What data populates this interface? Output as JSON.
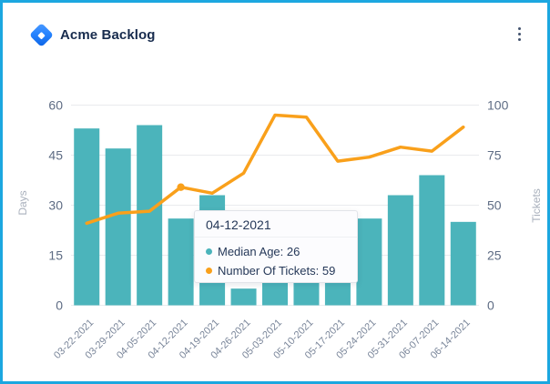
{
  "window": {
    "border_color": "#1CA7E0",
    "background": "#FFFFFF"
  },
  "header": {
    "title": "Acme Backlog",
    "logo_icon": "app-diamond-logo",
    "menu_icon": "more-options-vertical-dots"
  },
  "chart_data": {
    "type": "combo-bar-line",
    "title": "Acme Backlog",
    "categories": [
      "03-22-2021",
      "03-29-2021",
      "04-05-2021",
      "04-12-2021",
      "04-19-2021",
      "04-26-2021",
      "05-03-2021",
      "05-10-2021",
      "05-17-2021",
      "05-24-2021",
      "05-31-2021",
      "06-07-2021",
      "06-14-2021"
    ],
    "series": [
      {
        "name": "Median Age",
        "type": "bar",
        "axis": "left",
        "color": "#4BB4BB",
        "values": [
          53,
          47,
          54,
          26,
          33,
          5,
          7,
          7,
          7,
          26,
          33,
          39,
          25
        ]
      },
      {
        "name": "Number Of Tickets",
        "type": "line",
        "axis": "right",
        "color": "#F9A01B",
        "values": [
          41,
          46,
          47,
          59,
          56,
          66,
          95,
          94,
          72,
          74,
          79,
          77,
          89
        ],
        "active_marker_index": 3
      }
    ],
    "left_axis": {
      "label": "Days",
      "ticks": [
        0,
        15,
        30,
        45,
        60
      ],
      "range": [
        0,
        60
      ]
    },
    "right_axis": {
      "label": "Tickets",
      "ticks": [
        0,
        25,
        50,
        75,
        100
      ],
      "range": [
        0,
        100
      ]
    },
    "grid": true,
    "legend_position": "none",
    "x_label_angle": -45,
    "colors": {
      "gridline": "#E9EBEE",
      "tick_label": "#5E6C84",
      "x_label": "#7A869A",
      "axis_title": "#A9B0BC"
    }
  },
  "tooltip": {
    "date": "04-12-2021",
    "rows": [
      {
        "label": "Median Age",
        "value": "26",
        "color": "#4BB4BB"
      },
      {
        "label": "Number Of Tickets",
        "value": "59",
        "color": "#F9A01B"
      }
    ]
  }
}
